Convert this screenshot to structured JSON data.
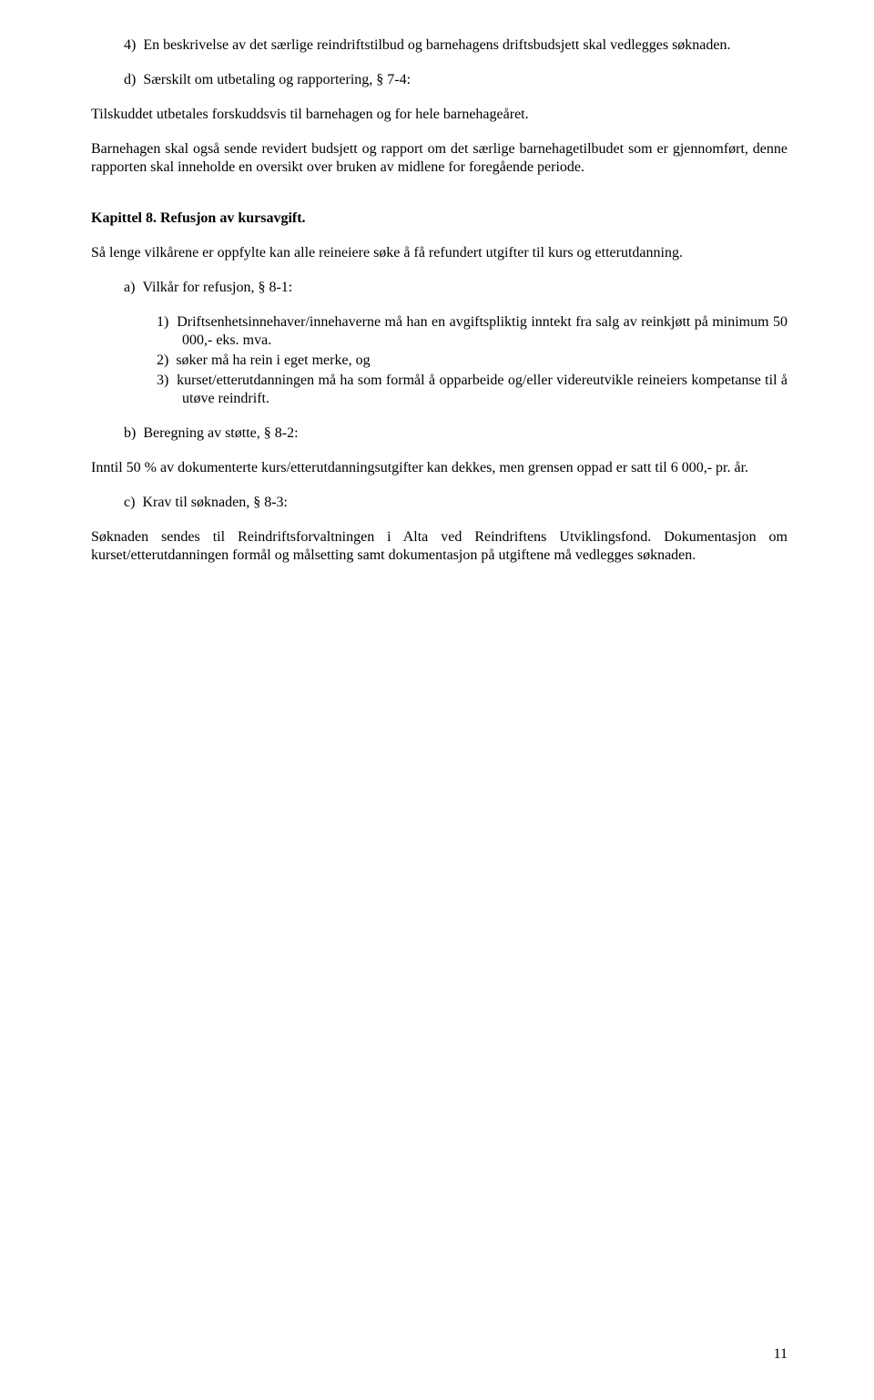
{
  "item_4_num": "4)",
  "item_4_text": "En beskrivelse av det særlige reindriftstilbud og barnehagens driftsbudsjett skal vedlegges søknaden.",
  "item_d_num": "d)",
  "item_d_text": "Særskilt om utbetaling og rapportering, § 7-4:",
  "para_tilskuddet": "Tilskuddet utbetales forskuddsvis til barnehagen og for hele barnehageåret.",
  "para_barnehagen": "Barnehagen skal også sende revidert budsjett og rapport om det særlige barnehagetilbudet som er gjennomført, denne rapporten skal inneholde en oversikt over bruken av midlene for foregående periode.",
  "kapittel8_heading": "Kapittel 8. Refusjon av kursavgift.",
  "para_saalen": "Så lenge vilkårene er oppfylte kan alle reineiere søke å få refundert utgifter til kurs og etterutdanning.",
  "item_a_num": "a)",
  "item_a_text": "Vilkår for refusjon, § 8-1:",
  "sub_1_num": "1)",
  "sub_1_text": "Driftsenhetsinnehaver/innehaverne må han en avgiftspliktig inntekt fra salg av reinkjøtt på minimum 50 000,- eks. mva.",
  "sub_2_num": "2)",
  "sub_2_text": "søker må ha rein i eget merke, og",
  "sub_3_num": "3)",
  "sub_3_text": "kurset/etterutdanningen må ha som formål å opparbeide og/eller videreutvikle reineiers kompetanse til å utøve reindrift.",
  "item_b_num": "b)",
  "item_b_text": "Beregning av støtte, § 8-2:",
  "para_inntil": "Inntil 50 % av dokumenterte kurs/etterutdanningsutgifter kan dekkes, men grensen oppad er satt til 6 000,- pr. år.",
  "item_c_num": "c)",
  "item_c_text": "Krav til søknaden, § 8-3:",
  "para_soknaden": "Søknaden sendes til Reindriftsforvaltningen i Alta ved Reindriftens Utviklingsfond. Dokumentasjon om kurset/etterutdanningen formål og målsetting samt dokumentasjon på utgiftene må vedlegges søknaden.",
  "page_number": "11"
}
